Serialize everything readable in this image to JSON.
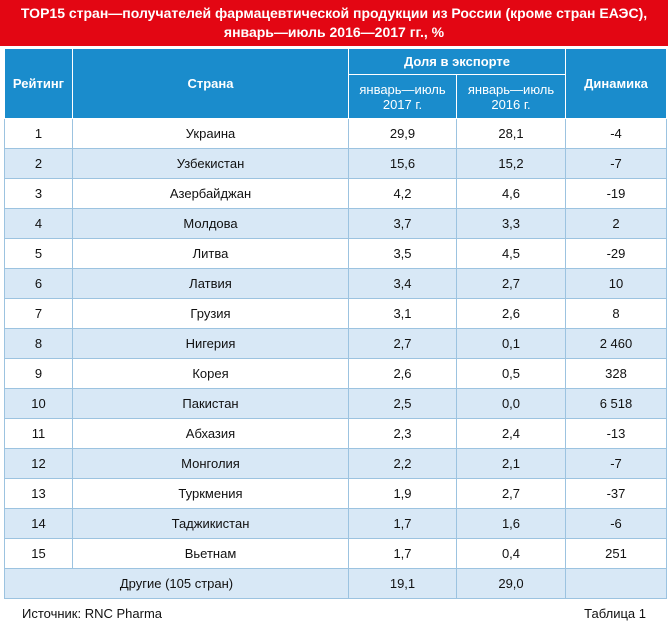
{
  "title": "TOP15 стран—получателей фармацевтической продукции из России (кроме стран ЕАЭС), январь—июль 2016—2017 гг., %",
  "table": {
    "header": {
      "rank": "Рейтинг",
      "country": "Страна",
      "share": "Доля в экспорте",
      "y2017": "январь—июль 2017 г.",
      "y2016": "январь—июль 2016 г.",
      "dynamics": "Динамика"
    },
    "rows": [
      [
        "1",
        "Украина",
        "29,9",
        "28,1",
        "-4"
      ],
      [
        "2",
        "Узбекистан",
        "15,6",
        "15,2",
        "-7"
      ],
      [
        "3",
        "Азербайджан",
        "4,2",
        "4,6",
        "-19"
      ],
      [
        "4",
        "Молдова",
        "3,7",
        "3,3",
        "2"
      ],
      [
        "5",
        "Литва",
        "3,5",
        "4,5",
        "-29"
      ],
      [
        "6",
        "Латвия",
        "3,4",
        "2,7",
        "10"
      ],
      [
        "7",
        "Грузия",
        "3,1",
        "2,6",
        "8"
      ],
      [
        "8",
        "Нигерия",
        "2,7",
        "0,1",
        "2 460"
      ],
      [
        "9",
        "Корея",
        "2,6",
        "0,5",
        "328"
      ],
      [
        "10",
        "Пакистан",
        "2,5",
        "0,0",
        "6 518"
      ],
      [
        "11",
        "Абхазия",
        "2,3",
        "2,4",
        "-13"
      ],
      [
        "12",
        "Монголия",
        "2,2",
        "2,1",
        "-7"
      ],
      [
        "13",
        "Туркмения",
        "1,9",
        "2,7",
        "-37"
      ],
      [
        "14",
        "Таджикистан",
        "1,7",
        "1,6",
        "-6"
      ],
      [
        "15",
        "Вьетнам",
        "1,7",
        "0,4",
        "251"
      ]
    ],
    "other": [
      "Другие (105 стран)",
      "19,1",
      "29,0"
    ]
  },
  "footer": {
    "source": "Источник: RNC Pharma",
    "label": "Таблица 1"
  }
}
